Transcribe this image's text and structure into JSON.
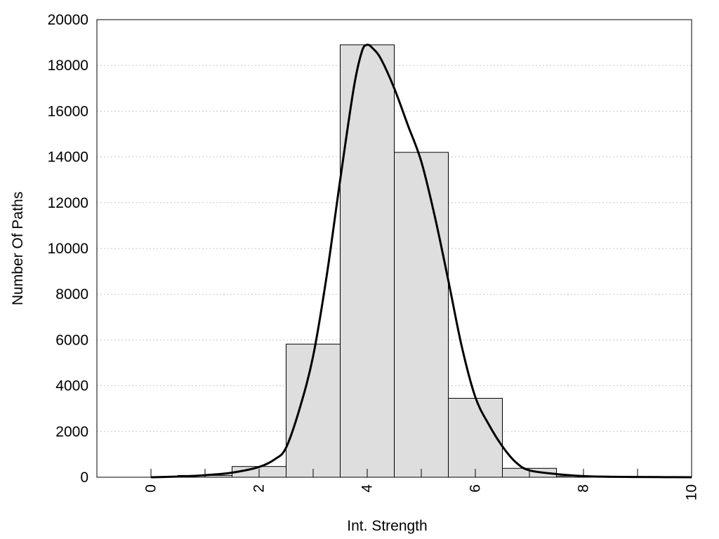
{
  "chart_data": {
    "type": "bar",
    "title": "",
    "xlabel": "Int. Strength",
    "ylabel": "Number Of Paths",
    "xlim": [
      -1,
      10
    ],
    "ylim": [
      0,
      20000
    ],
    "x_ticks": [
      "0",
      "2",
      "4",
      "6",
      "8",
      "10"
    ],
    "y_ticks": [
      "0",
      "2000",
      "4000",
      "6000",
      "8000",
      "10000",
      "12000",
      "14000",
      "16000",
      "18000",
      "20000"
    ],
    "grid": "horizontal-dotted",
    "bar_color": "#dedede",
    "bar_edge_color": "#000000",
    "bins": [
      {
        "x0": 0.5,
        "x1": 1.5,
        "value": 80
      },
      {
        "x0": 1.5,
        "x1": 2.5,
        "value": 470
      },
      {
        "x0": 2.5,
        "x1": 3.5,
        "value": 5820
      },
      {
        "x0": 3.5,
        "x1": 4.5,
        "value": 18900
      },
      {
        "x0": 4.5,
        "x1": 5.5,
        "value": 14200
      },
      {
        "x0": 5.5,
        "x1": 6.5,
        "value": 3450
      },
      {
        "x0": 6.5,
        "x1": 7.5,
        "value": 390
      },
      {
        "x0": 7.5,
        "x1": 8.5,
        "value": 50
      }
    ],
    "curve": {
      "x": [
        0,
        0.5,
        1,
        1.5,
        2,
        2.3,
        2.5,
        2.75,
        3,
        3.25,
        3.5,
        3.75,
        3.9,
        4,
        4.1,
        4.25,
        4.5,
        4.75,
        5,
        5.25,
        5.5,
        5.75,
        6,
        6.25,
        6.5,
        6.75,
        7,
        7.5,
        8,
        8.5,
        9,
        9.5,
        10
      ],
      "y": [
        0,
        30,
        90,
        200,
        450,
        800,
        1300,
        3000,
        5300,
        8800,
        13000,
        17000,
        18600,
        18900,
        18750,
        18300,
        17000,
        15400,
        13800,
        11400,
        8600,
        5700,
        3500,
        2300,
        1350,
        650,
        300,
        140,
        50,
        20,
        10,
        5,
        0
      ]
    }
  }
}
